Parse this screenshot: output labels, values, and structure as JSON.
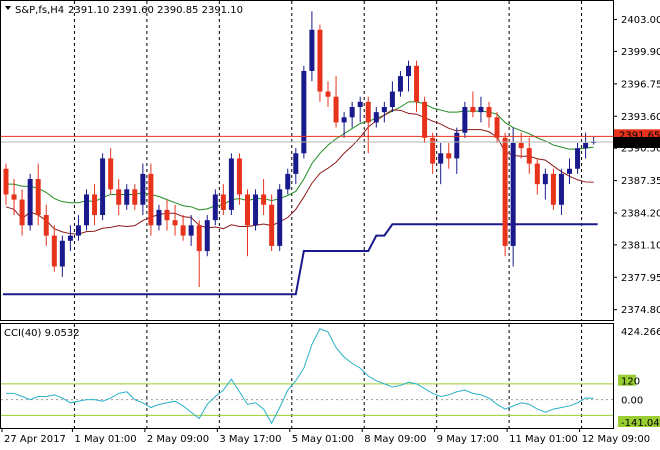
{
  "header": {
    "symbol_text": "S&P,fs,H4",
    "ohlc_text": "2391.10 2391.60 2390.85 2391.10"
  },
  "cci_header": {
    "text": "CCI(40) 9.0532"
  },
  "colors": {
    "bull": "#1a1a8c",
    "bear": "#e8331c",
    "ma_fast": "#1f8a1f",
    "ma_slow": "#8b1a1a",
    "stop_line": "#1a1a8c",
    "cci_line": "#2bb0c9",
    "cci_level": "#9acd32",
    "price_marker_bg": "#000000",
    "red_marker_bg": "#e8331c"
  },
  "chart_data": [
    {
      "type": "candlestick",
      "ylim": [
        2373.8,
        2404.8
      ],
      "y_ticks": [
        "2403.00",
        "2399.90",
        "2396.75",
        "2393.60",
        "2390.50",
        "2387.35",
        "2384.20",
        "2381.10",
        "2377.95",
        "2374.80"
      ],
      "y_tick_values": [
        2403.0,
        2399.9,
        2396.75,
        2393.6,
        2390.5,
        2387.35,
        2384.2,
        2381.1,
        2377.95,
        2374.8
      ],
      "current_price": "2391.10",
      "red_level": 2391.65,
      "red_level_label": "2391.65",
      "x_labels": [
        "27 Apr 2017",
        "1 May 01:00",
        "2 May 09:00",
        "3 May 17:00",
        "5 May 01:00",
        "8 May 09:00",
        "9 May 17:00",
        "11 May 01:00",
        "12 May 09:00"
      ],
      "x_label_bars": [
        0,
        9,
        18,
        27,
        36,
        45,
        54,
        63,
        72
      ],
      "bars": [
        [
          2388.5,
          2389.0,
          2385.0,
          2386.0
        ],
        [
          2386.0,
          2387.5,
          2384.0,
          2385.5
        ],
        [
          2385.5,
          2386.5,
          2382.0,
          2383.0
        ],
        [
          2383.0,
          2388.0,
          2382.5,
          2387.5
        ],
        [
          2387.5,
          2389.0,
          2383.0,
          2384.0
        ],
        [
          2384.0,
          2385.0,
          2381.0,
          2382.0
        ],
        [
          2382.0,
          2383.0,
          2378.5,
          2379.0
        ],
        [
          2379.0,
          2382.0,
          2378.0,
          2381.5
        ],
        [
          2381.5,
          2383.0,
          2380.5,
          2382.0
        ],
        [
          2382.0,
          2384.0,
          2381.5,
          2383.0
        ],
        [
          2383.0,
          2386.5,
          2382.5,
          2386.0
        ],
        [
          2386.0,
          2387.0,
          2383.0,
          2384.0
        ],
        [
          2384.0,
          2390.0,
          2383.5,
          2389.5
        ],
        [
          2389.5,
          2390.5,
          2386.0,
          2386.5
        ],
        [
          2386.5,
          2387.5,
          2384.0,
          2385.0
        ],
        [
          2385.0,
          2387.0,
          2384.5,
          2386.5
        ],
        [
          2386.5,
          2387.0,
          2384.5,
          2385.0
        ],
        [
          2385.0,
          2389.0,
          2384.0,
          2388.0
        ],
        [
          2388.0,
          2389.0,
          2382.0,
          2383.0
        ],
        [
          2383.0,
          2385.0,
          2382.5,
          2384.5
        ],
        [
          2384.5,
          2385.5,
          2382.5,
          2383.5
        ],
        [
          2383.5,
          2385.0,
          2382.0,
          2383.0
        ],
        [
          2383.0,
          2384.0,
          2381.5,
          2382.0
        ],
        [
          2382.0,
          2384.0,
          2381.0,
          2383.0
        ],
        [
          2383.0,
          2383.5,
          2377.0,
          2380.5
        ],
        [
          2380.5,
          2384.0,
          2380.0,
          2383.5
        ],
        [
          2383.5,
          2386.5,
          2383.0,
          2386.0
        ],
        [
          2386.0,
          2387.0,
          2384.0,
          2384.5
        ],
        [
          2384.5,
          2390.0,
          2384.0,
          2389.5
        ],
        [
          2389.5,
          2390.0,
          2385.0,
          2386.0
        ],
        [
          2386.0,
          2386.5,
          2380.0,
          2383.0
        ],
        [
          2383.0,
          2386.5,
          2382.5,
          2386.0
        ],
        [
          2386.0,
          2387.5,
          2384.0,
          2385.0
        ],
        [
          2385.0,
          2386.0,
          2380.5,
          2381.0
        ],
        [
          2381.0,
          2387.0,
          2380.5,
          2386.5
        ],
        [
          2386.5,
          2388.5,
          2386.0,
          2388.0
        ],
        [
          2388.0,
          2390.5,
          2387.0,
          2390.0
        ],
        [
          2390.0,
          2398.5,
          2389.5,
          2398.0
        ],
        [
          2398.0,
          2403.8,
          2397.0,
          2402.0
        ],
        [
          2402.0,
          2402.5,
          2395.0,
          2396.0
        ],
        [
          2396.0,
          2397.0,
          2394.5,
          2395.5
        ],
        [
          2395.5,
          2397.5,
          2392.5,
          2393.0
        ],
        [
          2393.0,
          2394.0,
          2391.5,
          2393.5
        ],
        [
          2393.5,
          2395.0,
          2392.5,
          2394.5
        ],
        [
          2394.5,
          2395.5,
          2393.0,
          2395.0
        ],
        [
          2395.0,
          2395.5,
          2390.0,
          2393.0
        ],
        [
          2393.0,
          2394.5,
          2392.5,
          2394.0
        ],
        [
          2394.0,
          2395.0,
          2393.0,
          2394.5
        ],
        [
          2394.5,
          2397.0,
          2394.0,
          2396.0
        ],
        [
          2396.0,
          2398.0,
          2395.5,
          2397.5
        ],
        [
          2397.5,
          2399.0,
          2396.0,
          2398.5
        ],
        [
          2398.5,
          2399.0,
          2394.0,
          2395.0
        ],
        [
          2395.0,
          2395.5,
          2391.0,
          2391.5
        ],
        [
          2391.5,
          2392.0,
          2388.0,
          2389.0
        ],
        [
          2389.0,
          2391.0,
          2387.0,
          2390.0
        ],
        [
          2390.0,
          2391.0,
          2388.5,
          2389.5
        ],
        [
          2389.5,
          2392.5,
          2388.0,
          2392.0
        ],
        [
          2392.0,
          2395.0,
          2391.5,
          2394.5
        ],
        [
          2394.5,
          2396.0,
          2393.5,
          2394.0
        ],
        [
          2394.0,
          2395.5,
          2393.0,
          2394.5
        ],
        [
          2394.5,
          2395.0,
          2392.5,
          2393.5
        ],
        [
          2393.5,
          2394.0,
          2391.0,
          2391.5
        ],
        [
          2391.5,
          2392.0,
          2380.0,
          2381.0
        ],
        [
          2381.0,
          2392.5,
          2379.0,
          2391.0
        ],
        [
          2391.0,
          2392.0,
          2389.5,
          2390.5
        ],
        [
          2390.5,
          2391.5,
          2388.0,
          2389.0
        ],
        [
          2389.0,
          2389.5,
          2386.0,
          2387.0
        ],
        [
          2387.0,
          2388.5,
          2385.5,
          2388.0
        ],
        [
          2388.0,
          2388.5,
          2384.5,
          2385.0
        ],
        [
          2385.0,
          2388.5,
          2384.0,
          2388.0
        ],
        [
          2388.0,
          2389.5,
          2387.0,
          2388.5
        ],
        [
          2388.5,
          2391.0,
          2388.0,
          2390.5
        ],
        [
          2390.5,
          2392.0,
          2389.5,
          2391.0
        ],
        [
          2391.0,
          2391.6,
          2390.85,
          2391.1
        ]
      ],
      "ma_fast": [
        2387.0,
        2387.0,
        2386.8,
        2386.8,
        2386.6,
        2386.2,
        2385.6,
        2385.3,
        2385.2,
        2385.2,
        2385.4,
        2385.3,
        2385.7,
        2386.0,
        2386.0,
        2386.0,
        2386.0,
        2386.2,
        2386.0,
        2385.8,
        2385.5,
        2385.2,
        2384.9,
        2384.8,
        2384.5,
        2384.6,
        2384.9,
        2385.0,
        2385.5,
        2385.6,
        2385.4,
        2385.6,
        2385.6,
        2385.4,
        2385.6,
        2385.9,
        2386.3,
        2387.5,
        2389.0,
        2390.0,
        2390.8,
        2391.4,
        2391.9,
        2392.4,
        2392.9,
        2393.1,
        2393.4,
        2393.7,
        2394.1,
        2394.5,
        2395.0,
        2395.0,
        2394.8,
        2394.4,
        2394.2,
        2394.0,
        2394.0,
        2394.1,
        2394.1,
        2394.1,
        2394.0,
        2393.8,
        2393.0,
        2392.5,
        2392.2,
        2391.9,
        2391.5,
        2391.2,
        2390.8,
        2390.6,
        2390.4,
        2390.4,
        2390.5,
        2390.6
      ]
    },
    {
      "type": "line",
      "name": "CCI(40)",
      "ylim": [
        -180,
        480
      ],
      "y_ticks": [
        "424.2662",
        "120",
        "0.00",
        "-141.0421"
      ],
      "y_tick_values": [
        424.2662,
        120,
        0,
        -141.0421
      ],
      "levels": [
        100,
        -100
      ],
      "values": [
        40,
        40,
        20,
        0,
        20,
        20,
        30,
        10,
        -20,
        -10,
        0,
        0,
        -10,
        10,
        40,
        50,
        0,
        -20,
        -50,
        -30,
        -20,
        -10,
        -40,
        -80,
        -120,
        -30,
        20,
        60,
        130,
        50,
        -30,
        -20,
        -60,
        -150,
        -50,
        60,
        120,
        200,
        350,
        450,
        430,
        330,
        270,
        230,
        200,
        150,
        120,
        100,
        80,
        90,
        110,
        100,
        70,
        40,
        20,
        30,
        50,
        60,
        40,
        30,
        10,
        -30,
        -60,
        -40,
        -20,
        -30,
        -60,
        -80,
        -60,
        -50,
        -40,
        -20,
        10,
        9
      ]
    }
  ]
}
